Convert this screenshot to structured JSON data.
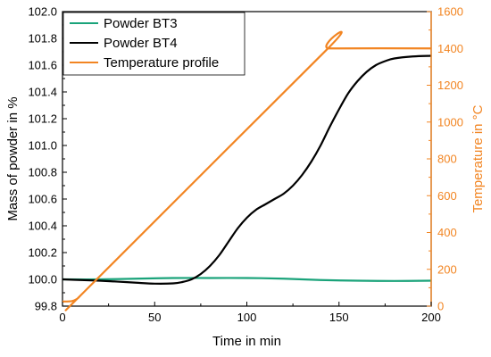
{
  "chart_data": {
    "type": "line",
    "xlabel": "Time in min",
    "ylabel_left": "Mass of powder in %",
    "ylabel_right": "Temperature in °C",
    "xlim": [
      0,
      200
    ],
    "ylim_left": [
      99.8,
      102.0
    ],
    "ylim_right": [
      0,
      1600
    ],
    "x_ticks": [
      "0",
      "50",
      "100",
      "150",
      "200"
    ],
    "y_left_ticks": [
      "99.8",
      "100.0",
      "100.2",
      "100.4",
      "100.6",
      "100.8",
      "101.0",
      "101.2",
      "101.4",
      "101.6",
      "101.8",
      "102.0"
    ],
    "y_right_ticks": [
      "0",
      "200",
      "400",
      "600",
      "800",
      "1000",
      "1200",
      "1400",
      "1600"
    ],
    "grid": false,
    "legend_position": "top-left",
    "colors": {
      "axes": "#000000",
      "right_axis": "#f28522"
    },
    "series": [
      {
        "name": "Powder BT3",
        "axis": "left",
        "color": "#1aa37a",
        "x": [
          0,
          20,
          40,
          60,
          80,
          100,
          120,
          140,
          160,
          180,
          200
        ],
        "y": [
          100.0,
          100.0,
          100.005,
          100.01,
          100.01,
          100.01,
          100.005,
          99.995,
          99.99,
          99.988,
          99.99
        ]
      },
      {
        "name": "Powder BT4",
        "axis": "left",
        "color": "#000000",
        "x": [
          0,
          10,
          20,
          30,
          40,
          50,
          60,
          65,
          70,
          75,
          80,
          85,
          90,
          95,
          100,
          105,
          110,
          115,
          120,
          125,
          130,
          135,
          140,
          145,
          150,
          155,
          160,
          165,
          170,
          175,
          180,
          190,
          200
        ],
        "y": [
          100.0,
          99.995,
          99.99,
          99.983,
          99.975,
          99.968,
          99.97,
          99.98,
          100.0,
          100.04,
          100.1,
          100.18,
          100.28,
          100.38,
          100.46,
          100.52,
          100.56,
          100.6,
          100.64,
          100.7,
          100.78,
          100.88,
          101.0,
          101.14,
          101.27,
          101.39,
          101.48,
          101.55,
          101.6,
          101.63,
          101.65,
          101.665,
          101.67
        ]
      },
      {
        "name": "Temperature profile",
        "axis": "right",
        "color": "#f28522",
        "x": [
          0,
          5,
          8,
          10,
          12,
          143,
          145,
          200
        ],
        "y": [
          25,
          27,
          40,
          60,
          80,
          1390,
          1400,
          1400
        ]
      }
    ]
  }
}
